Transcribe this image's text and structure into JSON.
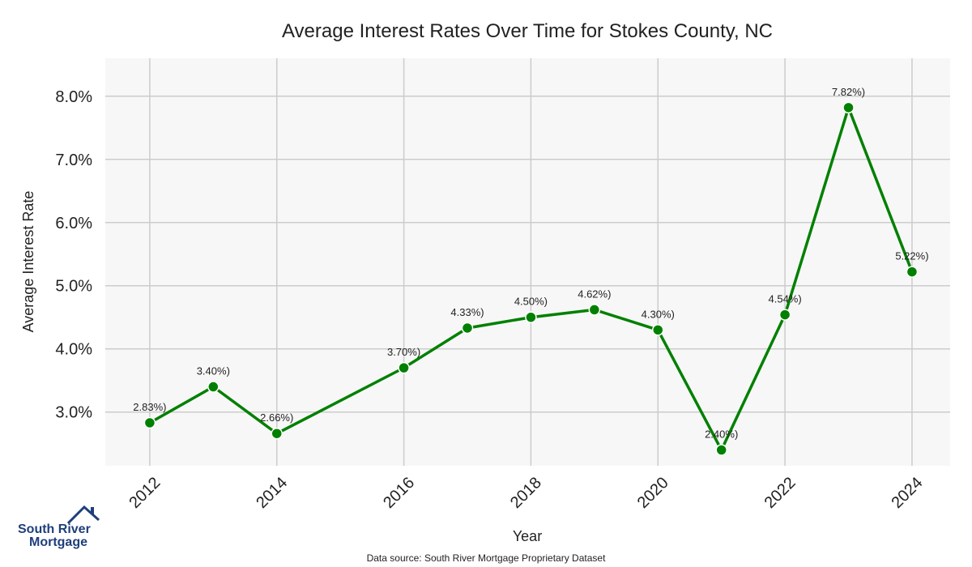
{
  "chart_data": {
    "type": "line",
    "title": "Average Interest Rates Over Time for Stokes County, NC",
    "xlabel": "Year",
    "ylabel": "Average Interest Rate",
    "x": [
      2012,
      2013,
      2014,
      2016,
      2017,
      2018,
      2019,
      2020,
      2021,
      2022,
      2023,
      2024
    ],
    "values": [
      2.83,
      3.4,
      2.66,
      3.7,
      4.33,
      4.5,
      4.62,
      4.3,
      2.4,
      4.54,
      7.82,
      5.22
    ],
    "data_labels": [
      "2.83%)",
      "3.40%)",
      "2.66%)",
      "3.70%)",
      "4.33%)",
      "4.50%)",
      "4.62%)",
      "4.30%)",
      "2.40%)",
      "4.54%)",
      "7.82%)",
      "5.22%)"
    ],
    "xticks": [
      "2012",
      "2014",
      "2016",
      "2018",
      "2020",
      "2022",
      "2024"
    ],
    "yticks": [
      "3.0%",
      "4.0%",
      "5.0%",
      "6.0%",
      "7.0%",
      "8.0%"
    ],
    "xlim": [
      2011.3,
      2024.6
    ],
    "ylim": [
      2.15,
      8.6
    ],
    "grid": true,
    "line_color": "#008000",
    "background_color": "#f7f7f7"
  },
  "branding": {
    "logo_line1": "South River",
    "logo_line2": "Mortgage",
    "logo_color": "#1f3f7a"
  },
  "footer": {
    "source": "Data source: South River Mortgage Proprietary Dataset"
  }
}
